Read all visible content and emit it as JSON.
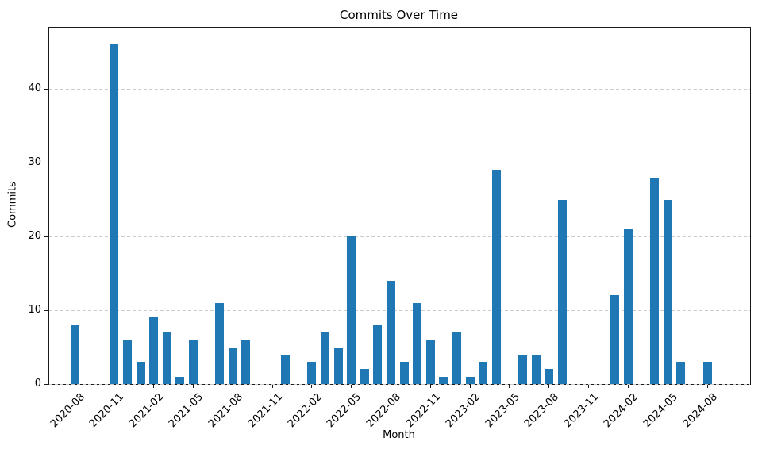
{
  "chart_data": {
    "type": "bar",
    "title": "Commits Over Time",
    "xlabel": "Month",
    "ylabel": "Commits",
    "categories": [
      "2020-08",
      "2020-09",
      "2020-10",
      "2020-11",
      "2020-12",
      "2021-01",
      "2021-02",
      "2021-03",
      "2021-04",
      "2021-05",
      "2021-06",
      "2021-07",
      "2021-08",
      "2021-09",
      "2021-10",
      "2021-11",
      "2021-12",
      "2022-01",
      "2022-02",
      "2022-03",
      "2022-04",
      "2022-05",
      "2022-06",
      "2022-07",
      "2022-08",
      "2022-09",
      "2022-10",
      "2022-11",
      "2022-12",
      "2023-01",
      "2023-02",
      "2023-03",
      "2023-04",
      "2023-05",
      "2023-06",
      "2023-07",
      "2023-08",
      "2023-09",
      "2023-10",
      "2023-11",
      "2023-12",
      "2024-01",
      "2024-02",
      "2024-03",
      "2024-04",
      "2024-05",
      "2024-06",
      "2024-07",
      "2024-08"
    ],
    "values": [
      8,
      0,
      0,
      46,
      6,
      3,
      9,
      7,
      1,
      6,
      0,
      11,
      5,
      6,
      0,
      0,
      4,
      0,
      3,
      7,
      5,
      20,
      2,
      8,
      14,
      3,
      11,
      6,
      1,
      7,
      1,
      3,
      29,
      0,
      4,
      4,
      2,
      25,
      0,
      0,
      0,
      12,
      21,
      0,
      28,
      25,
      3,
      0,
      3
    ],
    "x_tick_labels": [
      "2020-08",
      "2020-11",
      "2021-02",
      "2021-05",
      "2021-08",
      "2021-11",
      "2022-02",
      "2022-05",
      "2022-08",
      "2022-11",
      "2023-02",
      "2023-05",
      "2023-08",
      "2023-11",
      "2024-02",
      "2024-05",
      "2024-08"
    ],
    "x_tick_step": 3,
    "y_ticks": [
      0,
      10,
      20,
      30,
      40
    ],
    "ylim": [
      0,
      48.3
    ],
    "grid": "horizontal-dashed",
    "legend": "none",
    "colors": {
      "bar": "#1f77b4",
      "grid": "#cccccc",
      "axis": "#1a1a1a",
      "background": "#ffffff"
    }
  }
}
